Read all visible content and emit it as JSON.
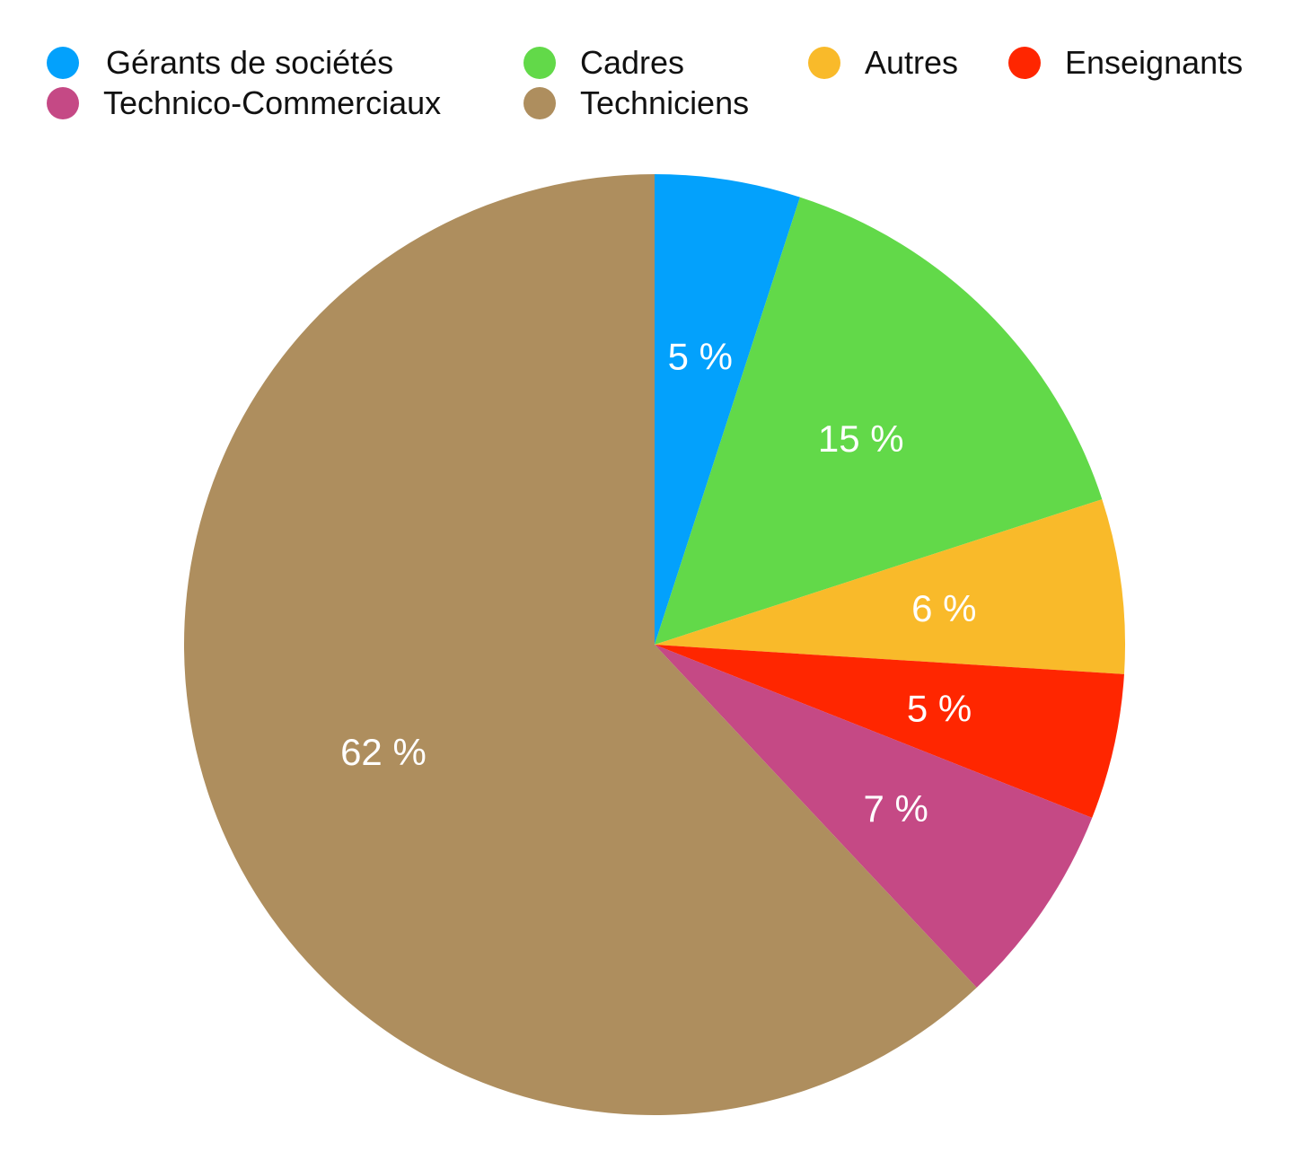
{
  "chart_data": {
    "type": "pie",
    "title": "",
    "legend_position": "top",
    "start_angle": "12 o'clock",
    "direction": "clockwise",
    "slices": [
      {
        "label": "Gérants de sociétés",
        "value": 5,
        "display": "5 %",
        "color": "#03A1FC"
      },
      {
        "label": "Cadres",
        "value": 15,
        "display": "15 %",
        "color": "#62D949"
      },
      {
        "label": "Autres",
        "value": 6,
        "display": "6 %",
        "color": "#F9BA2A"
      },
      {
        "label": "Enseignants",
        "value": 5,
        "display": "5 %",
        "color": "#FF2600"
      },
      {
        "label": "Technico-Commerciaux",
        "value": 7,
        "display": "7 %",
        "color": "#C54985"
      },
      {
        "label": "Techniciens",
        "value": 62,
        "display": "62 %",
        "color": "#AE8E5E"
      }
    ]
  }
}
